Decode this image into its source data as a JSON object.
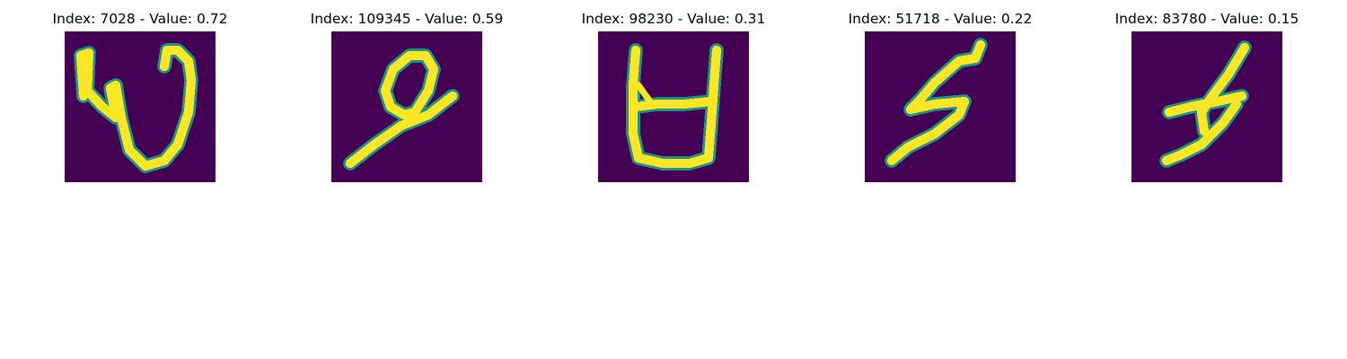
{
  "figure": {
    "background_color": "#ffffff",
    "image_background_color": "#440154",
    "stroke_color": "#fde725",
    "edge_color": "#21918c",
    "panels": [
      {
        "title": "Index: 7028 - Value: 0.72",
        "glyph": "loopy-w-glyph"
      },
      {
        "title": "Index: 109345 - Value: 0.59",
        "glyph": "loop-stick-glyph"
      },
      {
        "title": "Index: 98230 - Value: 0.31",
        "glyph": "cup-h-glyph"
      },
      {
        "title": "Index: 51718 - Value: 0.22",
        "glyph": "zigzag-glyph"
      },
      {
        "title": "Index: 83780 - Value: 0.15",
        "glyph": "crossed-zigzag-glyph"
      }
    ]
  }
}
